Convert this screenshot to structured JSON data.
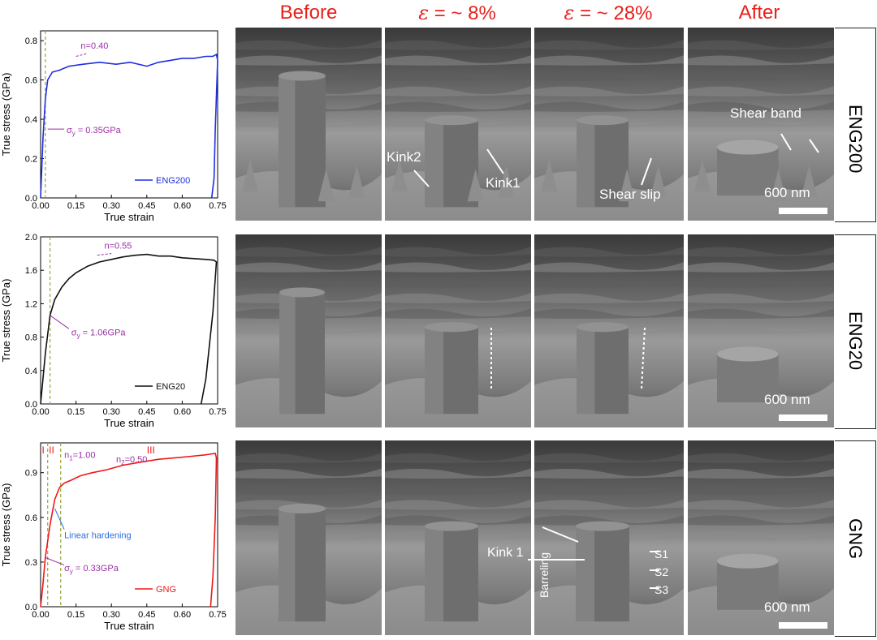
{
  "columns": [
    {
      "label": "Before"
    },
    {
      "label_prefix": "ε",
      "label_rest": " = ~ 8%"
    },
    {
      "label_prefix": "ε",
      "label_rest": " = ~ 28%"
    },
    {
      "label": "After"
    }
  ],
  "rows": [
    {
      "label": "ENG200"
    },
    {
      "label": "ENG20"
    },
    {
      "label": "GNG"
    }
  ],
  "annotations": {
    "eng200_kink2": "Kink2",
    "eng200_kink1": "Kink1",
    "eng200_shear_slip": "Shear slip",
    "eng200_shear_band": "Shear band",
    "gng_kink1": "Kink 1",
    "gng_barreling": "Barreling",
    "gng_s1": "S1",
    "gng_s2": "S2",
    "gng_s3": "S3",
    "scale_bar": "600 nm"
  },
  "colors": {
    "eng200": "#1e2ee0",
    "eng20": "#111111",
    "gng": "#f01818",
    "annot": "#9b2fa6",
    "title": "#e8201a",
    "dashed": "#9aa83a"
  },
  "chart_data": [
    {
      "type": "line",
      "xlabel": "True strain",
      "ylabel": "True stress (GPa)",
      "xlim": [
        0,
        0.75
      ],
      "ylim": [
        0,
        0.85
      ],
      "xticks": [
        "0.00",
        "0.15",
        "0.30",
        "0.45",
        "0.60",
        "0.75"
      ],
      "yticks": [
        "0.0",
        "0.2",
        "0.4",
        "0.6",
        "0.8"
      ],
      "ytick_values": [
        0,
        0.2,
        0.4,
        0.6,
        0.8
      ],
      "legend": "ENG200",
      "legend_position": "bottom-right",
      "series": [
        {
          "name": "ENG200",
          "x": [
            0,
            0.01,
            0.02,
            0.03,
            0.05,
            0.08,
            0.12,
            0.18,
            0.25,
            0.32,
            0.38,
            0.45,
            0.5,
            0.55,
            0.6,
            0.65,
            0.7,
            0.73,
            0.745,
            0.75,
            0.74,
            0.735,
            0.725
          ],
          "y": [
            0,
            0.3,
            0.5,
            0.6,
            0.64,
            0.65,
            0.67,
            0.68,
            0.69,
            0.68,
            0.69,
            0.67,
            0.69,
            0.7,
            0.71,
            0.71,
            0.72,
            0.72,
            0.73,
            0.7,
            0.35,
            0.1,
            0
          ]
        }
      ],
      "annotations": [
        {
          "text": "n=0.40"
        },
        {
          "text": "σ",
          "subscript": "y",
          "text_rest": " = 0.35GPa"
        }
      ],
      "dashed_x": 0.02
    },
    {
      "type": "line",
      "xlabel": "True strain",
      "ylabel": "True stress (GPa)",
      "xlim": [
        0,
        0.75
      ],
      "ylim": [
        0,
        2.0
      ],
      "xticks": [
        "0.00",
        "0.15",
        "0.30",
        "0.45",
        "0.60",
        "0.75"
      ],
      "yticks": [
        "0.0",
        "0.4",
        "0.8",
        "1.2",
        "1.6",
        "2.0"
      ],
      "ytick_values": [
        0,
        0.4,
        0.8,
        1.2,
        1.6,
        2.0
      ],
      "legend": "ENG20",
      "legend_position": "bottom-right",
      "series": [
        {
          "name": "ENG20",
          "x": [
            0,
            0.02,
            0.04,
            0.06,
            0.09,
            0.12,
            0.15,
            0.2,
            0.25,
            0.3,
            0.35,
            0.4,
            0.45,
            0.5,
            0.55,
            0.6,
            0.65,
            0.7,
            0.735,
            0.745,
            0.73,
            0.7,
            0.68
          ],
          "y": [
            0,
            0.6,
            1.06,
            1.25,
            1.4,
            1.5,
            1.57,
            1.65,
            1.7,
            1.73,
            1.76,
            1.78,
            1.79,
            1.77,
            1.77,
            1.75,
            1.74,
            1.73,
            1.72,
            1.7,
            1.1,
            0.3,
            0
          ]
        }
      ],
      "annotations": [
        {
          "text": "n=0.55"
        },
        {
          "text": "σ",
          "subscript": "y",
          "text_rest": " = 1.06GPa"
        }
      ],
      "dashed_x": 0.04
    },
    {
      "type": "line",
      "xlabel": "True strain",
      "ylabel": "True stress (GPa)",
      "xlim": [
        0,
        0.75
      ],
      "ylim": [
        0,
        1.1
      ],
      "xticks": [
        "0.00",
        "0.15",
        "0.30",
        "0.45",
        "0.60",
        "0.75"
      ],
      "yticks": [
        "0.0",
        "0.3",
        "0.6",
        "0.9"
      ],
      "ytick_values": [
        0,
        0.3,
        0.6,
        0.9
      ],
      "legend": "GNG",
      "legend_position": "bottom-right",
      "series": [
        {
          "name": "GNG",
          "x": [
            0,
            0.01,
            0.02,
            0.04,
            0.06,
            0.08,
            0.1,
            0.13,
            0.17,
            0.22,
            0.28,
            0.35,
            0.42,
            0.5,
            0.57,
            0.64,
            0.7,
            0.74,
            0.745,
            0.74,
            0.73,
            0.72
          ],
          "y": [
            0,
            0.15,
            0.33,
            0.55,
            0.72,
            0.8,
            0.83,
            0.85,
            0.88,
            0.9,
            0.92,
            0.95,
            0.97,
            0.99,
            1.0,
            1.01,
            1.02,
            1.03,
            1.0,
            0.6,
            0.2,
            0
          ]
        }
      ],
      "annotations": [
        {
          "text": "n",
          "subscript": "1",
          "text_rest": "=1.00"
        },
        {
          "text": "n",
          "subscript": "2",
          "text_rest": "=0.50"
        },
        {
          "text": "Linear hardening"
        },
        {
          "text": "σ",
          "subscript": "y",
          "text_rest": " = 0.33GPa"
        }
      ],
      "stage_labels": [
        "I",
        "II",
        "III"
      ],
      "dashed_x": [
        0.03,
        0.085
      ]
    }
  ]
}
